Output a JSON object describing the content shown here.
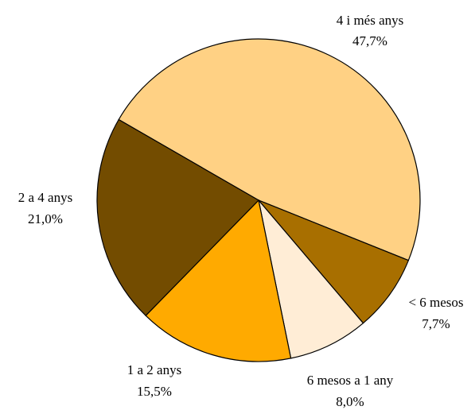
{
  "chart_data": {
    "type": "pie",
    "categories": [
      "4 i més anys",
      "< 6 mesos",
      "6 mesos a 1 any",
      "1 a 2 anys",
      "2 a 4 anys"
    ],
    "values": [
      47.7,
      7.7,
      8.0,
      15.5,
      21.0
    ],
    "value_labels": [
      "47,7%",
      "7,7%",
      "8,0%",
      "15,5%",
      "21,0%"
    ],
    "colors": [
      "#FFD184",
      "#A86F00",
      "#FFEDD6",
      "#FFAA00",
      "#734C00"
    ],
    "start_angle_deg": 150,
    "direction": "clockwise",
    "title": "",
    "legend": "none"
  }
}
